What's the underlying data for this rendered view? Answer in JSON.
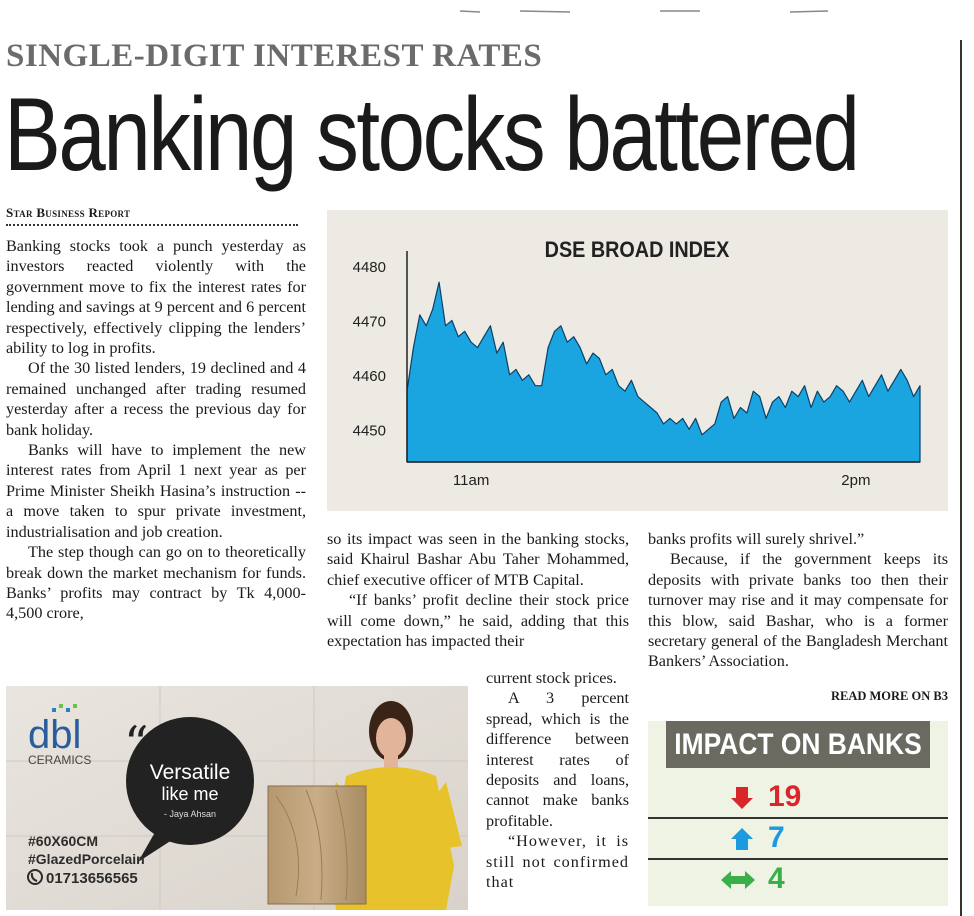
{
  "kicker": "SINGLE-DIGIT INTEREST RATES",
  "headline": "Banking stocks battered",
  "byline": "Star Business Report",
  "body_col1": [
    "Banking stocks took a punch yesterday as investors reacted violently with the government move to fix the interest rates for lending and savings at 9 percent and 6 percent respectively, effectively clipping the lenders’ ability to log in profits.",
    "Of the 30 listed lenders, 19 declined and 4 remained unchanged after trading resumed yesterday after a recess the previous day for bank holiday.",
    "Banks will have to implement the new interest rates from April 1 next year as per Prime Minister Sheikh Hasina’s instruction -- a move taken to spur private investment, industrialisation and job creation.",
    "The step though can go on to theoretically break down the market mechanism for funds. Banks’ profits may contract by Tk 4,000-4,500 crore,"
  ],
  "body_col2": [
    "so its impact was seen in the banking stocks, said Khairul Bashar Abu Taher Mohammed, chief executive officer of MTB Capital.",
    "“If banks’ profit decline their stock price will come down,” he said, adding that this expectation has impacted their"
  ],
  "body_col2_wrap": [
    "current stock prices.",
    "A 3 percent spread, which is the difference between interest rates of deposits and loans, cannot make banks profitable.",
    "“However, it is still not confirmed that"
  ],
  "body_col3": [
    "banks profits will surely shrivel.”",
    "Because, if the government keeps its deposits with private banks too then their turnover may rise and it may compensate for this blow, said Bashar, who is a former secretary general of the Bangladesh Merchant Bankers’ Association."
  ],
  "read_more": "READ MORE ON B3",
  "chart_data": {
    "type": "area",
    "title": "DSE BROAD INDEX",
    "x_ticks": [
      "11am",
      "2pm"
    ],
    "y_ticks": [
      4480,
      4470,
      4460,
      4450
    ],
    "ylim": [
      4444,
      4482
    ],
    "x_range": [
      10.5,
      14.5
    ],
    "x": [
      10.5,
      10.55,
      10.6,
      10.65,
      10.7,
      10.75,
      10.8,
      10.85,
      10.9,
      10.95,
      11.0,
      11.05,
      11.1,
      11.15,
      11.2,
      11.25,
      11.3,
      11.35,
      11.4,
      11.45,
      11.5,
      11.55,
      11.6,
      11.65,
      11.7,
      11.75,
      11.8,
      11.85,
      11.9,
      11.95,
      12.0,
      12.05,
      12.1,
      12.15,
      12.2,
      12.25,
      12.3,
      12.35,
      12.4,
      12.45,
      12.5,
      12.55,
      12.6,
      12.65,
      12.7,
      12.75,
      12.8,
      12.85,
      12.9,
      12.95,
      13.0,
      13.05,
      13.1,
      13.15,
      13.2,
      13.25,
      13.3,
      13.35,
      13.4,
      13.45,
      13.5,
      13.55,
      13.6,
      13.65,
      13.7,
      13.75,
      13.8,
      13.85,
      13.9,
      13.95,
      14.0,
      14.05,
      14.1,
      14.15,
      14.2,
      14.25,
      14.3,
      14.35,
      14.4,
      14.45,
      14.5
    ],
    "values": [
      4457,
      4465,
      4471,
      4469,
      4472,
      4477,
      4469,
      4470,
      4467,
      4468,
      4466,
      4465,
      4467,
      4469,
      4464,
      4466,
      4460,
      4461,
      4459,
      4460,
      4458,
      4458,
      4465,
      4468,
      4469,
      4466,
      4467,
      4465,
      4462,
      4464,
      4463,
      4460,
      4461,
      4458,
      4457,
      4459,
      4456,
      4455,
      4454,
      4453,
      4451,
      4452,
      4451,
      4452,
      4450,
      4452,
      4449,
      4450,
      4451,
      4455,
      4456,
      4452,
      4454,
      4453,
      4457,
      4456,
      4452,
      4455,
      4456,
      4454,
      4457,
      4456,
      4458,
      4454,
      4457,
      4455,
      4456,
      4458,
      4457,
      4455,
      4457,
      4459,
      4456,
      4458,
      4460,
      4457,
      4459,
      4461,
      4459,
      4456,
      4458
    ],
    "color": "#1ba5e0",
    "grid": false
  },
  "impact": {
    "title": "IMPACT ON BANKS",
    "rows": [
      {
        "icon": "arrow-down-icon",
        "value": "19",
        "color": "#d9262a"
      },
      {
        "icon": "arrow-up-icon",
        "value": "7",
        "color": "#1a9be0"
      },
      {
        "icon": "arrow-both-icon",
        "value": "4",
        "color": "#3aae49"
      }
    ]
  },
  "ad": {
    "brand": "dbl",
    "brand_sub": "CERAMICS",
    "slogan_line1": "Versatile",
    "slogan_line2": "like me",
    "endorser": "- Jaya Ahsan",
    "tag1": "#60X60CM",
    "tag2": "#GlazedPorcelain",
    "phone": "01713656565"
  }
}
